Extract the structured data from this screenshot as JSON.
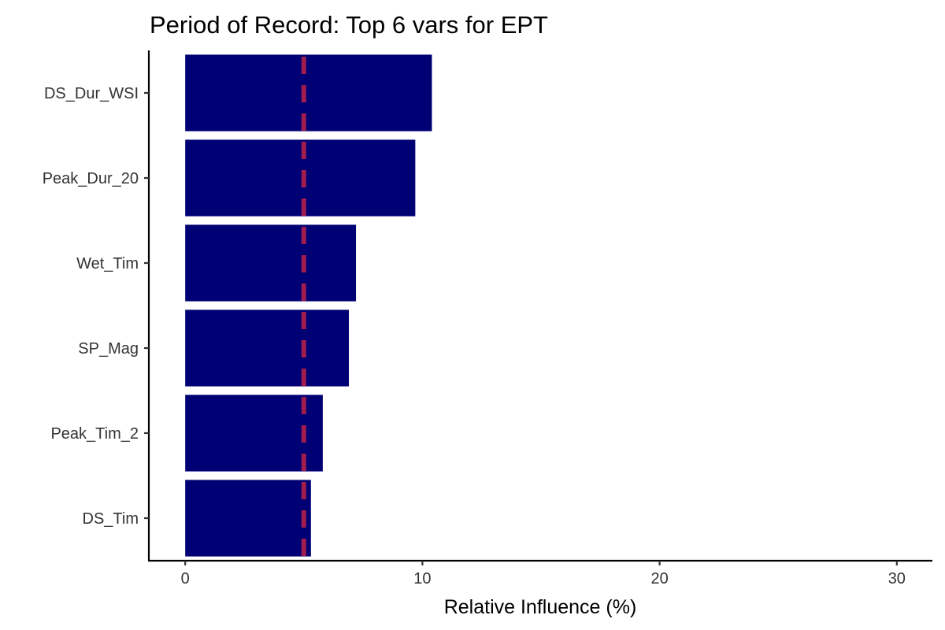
{
  "chart_data": {
    "type": "bar",
    "orientation": "horizontal",
    "title": "Period of Record: Top 6 vars for EPT",
    "xlabel": "Relative Influence (%)",
    "ylabel": "",
    "categories": [
      "DS_Dur_WSI",
      "Peak_Dur_20",
      "Wet_Tim",
      "SP_Mag",
      "Peak_Tim_2",
      "DS_Tim"
    ],
    "values": [
      10.4,
      9.7,
      7.2,
      6.9,
      5.8,
      5.3
    ],
    "xlim": [
      -1.5,
      31.5
    ],
    "xticks": [
      0,
      10,
      20,
      30
    ],
    "reference_line": {
      "x": 5,
      "style": "dashed"
    },
    "grid": false,
    "legend": "none",
    "colors": {
      "bar": "#000075",
      "reference_line": "#A11D4D"
    }
  }
}
